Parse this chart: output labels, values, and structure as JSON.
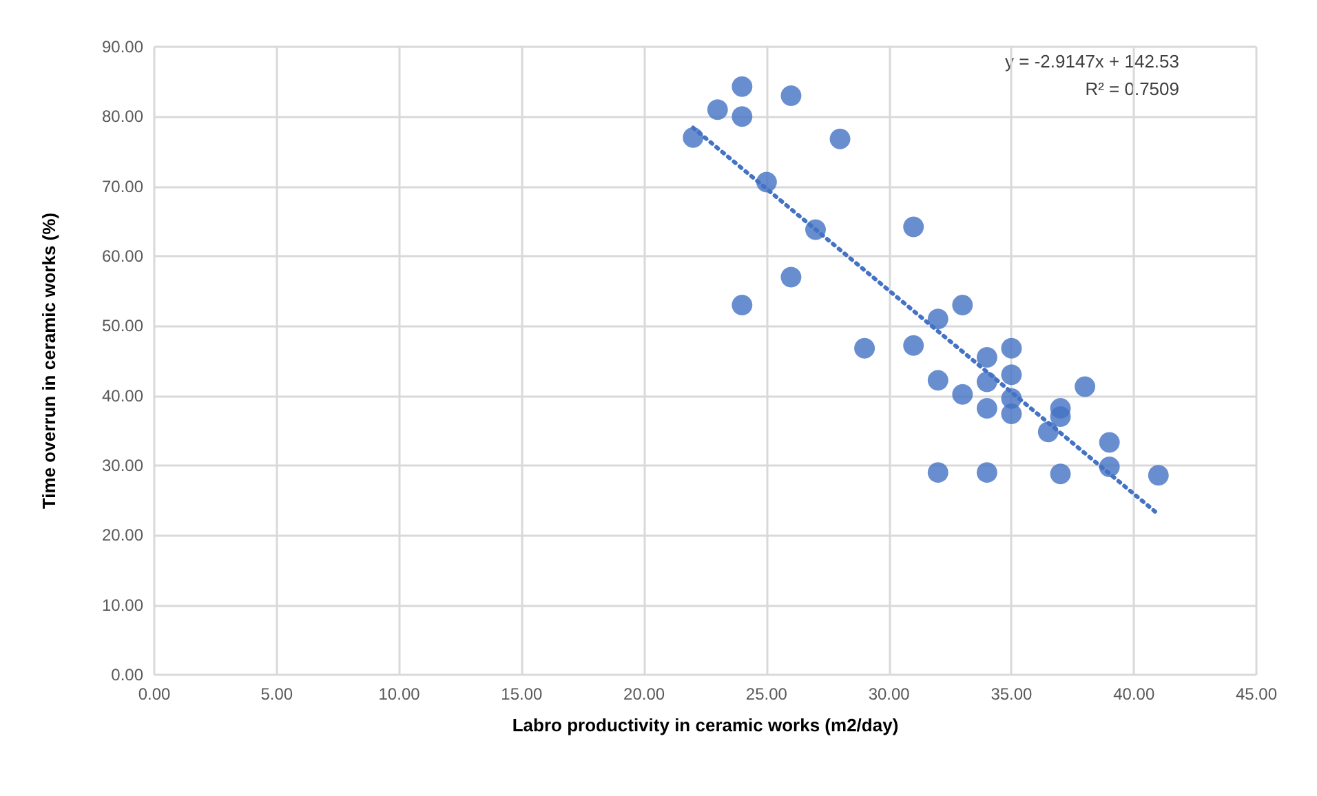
{
  "chart_data": {
    "type": "scatter",
    "xlabel": "Labro productivity in ceramic works (m2/day)",
    "ylabel": "Time overrun in ceramic works (%)",
    "xlim": [
      0,
      45
    ],
    "xticks": [
      {
        "value": 0,
        "label": "0.00"
      },
      {
        "value": 5,
        "label": "5.00"
      },
      {
        "value": 10,
        "label": "10.00"
      },
      {
        "value": 15,
        "label": "15.00"
      },
      {
        "value": 20,
        "label": "20.00"
      },
      {
        "value": 25,
        "label": "25.00"
      },
      {
        "value": 30,
        "label": "30.00"
      },
      {
        "value": 35,
        "label": "35.00"
      },
      {
        "value": 40,
        "label": "40.00"
      },
      {
        "value": 45,
        "label": "45.00"
      }
    ],
    "ylim": [
      0,
      90
    ],
    "yticks": [
      {
        "value": 0,
        "label": "0.00"
      },
      {
        "value": 10,
        "label": "10.00"
      },
      {
        "value": 20,
        "label": "20.00"
      },
      {
        "value": 30,
        "label": "30.00"
      },
      {
        "value": 40,
        "label": "40.00"
      },
      {
        "value": 50,
        "label": "50.00"
      },
      {
        "value": 60,
        "label": "60.00"
      },
      {
        "value": 70,
        "label": "70.00"
      },
      {
        "value": 80,
        "label": "80.00"
      },
      {
        "value": 90,
        "label": "90.00"
      }
    ],
    "grid": true,
    "marker": "circle",
    "series": [
      {
        "color": "#4472c4",
        "x": [
          22,
          23,
          24,
          24,
          24,
          25,
          26,
          26,
          27,
          28,
          29,
          31,
          31,
          32,
          32,
          32,
          33,
          33,
          34,
          34,
          34,
          34,
          35,
          35,
          35,
          35,
          36.5,
          37,
          37,
          37,
          38,
          39,
          39,
          41
        ],
        "values": [
          77,
          81,
          84.3,
          80,
          53,
          70.6,
          83,
          57,
          63.8,
          76.8,
          46.8,
          64.2,
          47.2,
          51,
          42.2,
          29,
          53,
          40.2,
          45.5,
          42,
          38.2,
          29,
          46.8,
          43,
          39.6,
          37.4,
          34.8,
          38.2,
          37,
          28.8,
          41.3,
          33.3,
          29.8,
          28.6
        ]
      },
      {
        "type": "line",
        "color": "#4472c4",
        "line_style": "dotted",
        "marker": "none",
        "x": [
          22,
          41
        ],
        "values": [
          78.4,
          23
        ]
      }
    ],
    "annotations": [
      "y = -2.9147x + 142.53",
      "R² = 0.7509"
    ]
  }
}
